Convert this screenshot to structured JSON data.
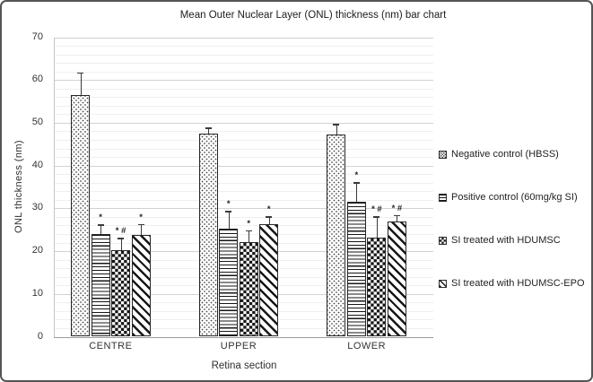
{
  "figure": {
    "border_color": "#555555",
    "background": "#ffffff"
  },
  "colors": {
    "pattern_ink": "#161616",
    "text": "#2e2e2e",
    "gridline_major": "#d2d2d2",
    "gridline_minor": "#efefef",
    "axis_line": "#9b9b9b",
    "bar_fill": "#ffffff"
  },
  "chart_data": {
    "type": "bar",
    "title": "Mean Outer Nuclear Layer (ONL) thickness (nm) bar chart",
    "xlabel": "Retina section",
    "ylabel": "ONL thickness (nm)",
    "ylim": [
      0,
      70
    ],
    "yticks": [
      0,
      10,
      20,
      30,
      40,
      50,
      60,
      70
    ],
    "ytick_interval": 10,
    "minor_gridline_interval": 2,
    "grid": true,
    "error_bars": true,
    "legend_position": "right",
    "categories": [
      "CENTRE",
      "UPPER",
      "LOWER"
    ],
    "series": [
      {
        "name": "Negative control (HBSS)",
        "pattern": "dots",
        "values": [
          56.5,
          47.4,
          47.2
        ],
        "errors": [
          5.3,
          1.5,
          2.5
        ],
        "annotations": [
          "",
          "",
          ""
        ]
      },
      {
        "name": "Positive control (60mg/kg SI)",
        "pattern": "horizontal-lines",
        "values": [
          24.0,
          25.2,
          31.6
        ],
        "errors": [
          2.3,
          4.2,
          4.5
        ],
        "annotations": [
          "*",
          "*",
          "*"
        ]
      },
      {
        "name": "SI treated with HDUMSC",
        "pattern": "checkerboard",
        "values": [
          20.2,
          22.2,
          23.2
        ],
        "errors": [
          2.9,
          2.7,
          4.9
        ],
        "annotations": [
          "* #",
          "*",
          "* #"
        ]
      },
      {
        "name": "SI treated with HDUMSC-EPO",
        "pattern": "diagonal-lines",
        "values": [
          23.8,
          26.3,
          27.0
        ],
        "errors": [
          2.6,
          1.8,
          1.4
        ],
        "annotations": [
          "*",
          "*",
          "* #"
        ]
      }
    ]
  }
}
